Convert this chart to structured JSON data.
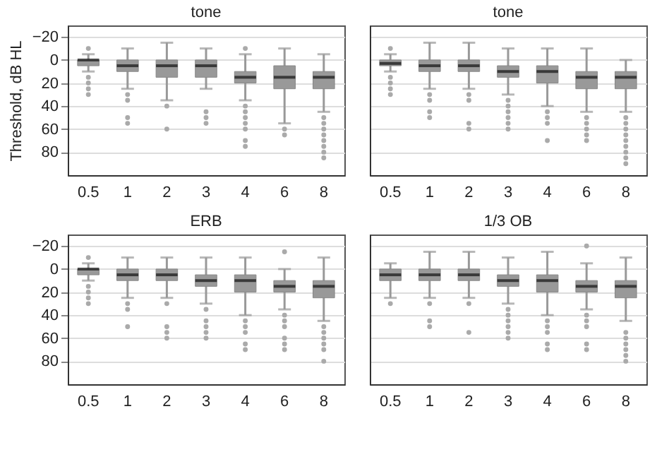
{
  "chart_data": [
    {
      "type": "box",
      "title": "tone",
      "ylabel": "Threshold, dB HL",
      "categories": [
        "0.5",
        "1",
        "2",
        "3",
        "4",
        "6",
        "8"
      ],
      "ylim": [
        100,
        -30
      ],
      "yticks": [
        -20,
        0,
        20,
        40,
        60,
        80
      ],
      "grid": "y",
      "boxes": [
        {
          "low": -5,
          "q1": 0,
          "median": 0,
          "q3": 5,
          "high": 10,
          "outliers": [
            -10,
            15,
            20,
            25,
            30
          ]
        },
        {
          "low": -10,
          "q1": 0,
          "median": 5,
          "q3": 10,
          "high": 25,
          "outliers": [
            30,
            35,
            50,
            55
          ]
        },
        {
          "low": -15,
          "q1": 0,
          "median": 5,
          "q3": 15,
          "high": 35,
          "outliers": [
            40,
            60
          ]
        },
        {
          "low": -10,
          "q1": 0,
          "median": 5,
          "q3": 15,
          "high": 25,
          "outliers": [
            45,
            50,
            55
          ]
        },
        {
          "low": -5,
          "q1": 10,
          "median": 15,
          "q3": 20,
          "high": 35,
          "outliers": [
            -10,
            40,
            45,
            50,
            55,
            60,
            70,
            75
          ]
        },
        {
          "low": -10,
          "q1": 5,
          "median": 15,
          "q3": 25,
          "high": 55,
          "outliers": [
            60,
            65
          ]
        },
        {
          "low": -5,
          "q1": 10,
          "median": 15,
          "q3": 25,
          "high": 45,
          "outliers": [
            50,
            55,
            60,
            65,
            70,
            75,
            80,
            85
          ]
        }
      ]
    },
    {
      "type": "box",
      "title": "tone",
      "categories": [
        "0.5",
        "1",
        "2",
        "3",
        "4",
        "6",
        "8"
      ],
      "ylim": [
        100,
        -30
      ],
      "yticks": [
        -20,
        0,
        20,
        40,
        60,
        80
      ],
      "grid": "y",
      "tick_labels": "x",
      "boxes": [
        {
          "low": -5,
          "q1": 0,
          "median": 3,
          "q3": 5,
          "high": 10,
          "outliers": [
            -10,
            15,
            20,
            25,
            30
          ]
        },
        {
          "low": -15,
          "q1": 0,
          "median": 5,
          "q3": 10,
          "high": 25,
          "outliers": [
            30,
            35,
            45,
            50
          ]
        },
        {
          "low": -15,
          "q1": 0,
          "median": 5,
          "q3": 10,
          "high": 25,
          "outliers": [
            30,
            35,
            55,
            60
          ]
        },
        {
          "low": -10,
          "q1": 5,
          "median": 10,
          "q3": 15,
          "high": 30,
          "outliers": [
            35,
            40,
            45,
            50,
            55,
            60
          ]
        },
        {
          "low": -10,
          "q1": 5,
          "median": 10,
          "q3": 20,
          "high": 40,
          "outliers": [
            45,
            50,
            55,
            70
          ]
        },
        {
          "low": -10,
          "q1": 10,
          "median": 15,
          "q3": 25,
          "high": 45,
          "outliers": [
            50,
            55,
            60,
            65,
            70
          ]
        },
        {
          "low": 0,
          "q1": 10,
          "median": 15,
          "q3": 25,
          "high": 45,
          "outliers": [
            50,
            55,
            60,
            65,
            70,
            75,
            80,
            85,
            90
          ]
        }
      ]
    },
    {
      "type": "box",
      "title": "ERB",
      "categories": [
        "0.5",
        "1",
        "2",
        "3",
        "4",
        "6",
        "8"
      ],
      "ylim": [
        100,
        -30
      ],
      "yticks": [
        -20,
        0,
        20,
        40,
        60,
        80
      ],
      "grid": "y",
      "boxes": [
        {
          "low": -5,
          "q1": 0,
          "median": 0,
          "q3": 5,
          "high": 10,
          "outliers": [
            -10,
            15,
            20,
            25,
            30
          ]
        },
        {
          "low": -10,
          "q1": 0,
          "median": 5,
          "q3": 10,
          "high": 25,
          "outliers": [
            30,
            35,
            50
          ]
        },
        {
          "low": -10,
          "q1": 0,
          "median": 5,
          "q3": 10,
          "high": 25,
          "outliers": [
            30,
            50,
            55,
            60
          ]
        },
        {
          "low": -10,
          "q1": 5,
          "median": 10,
          "q3": 15,
          "high": 30,
          "outliers": [
            35,
            45,
            50,
            55,
            60
          ]
        },
        {
          "low": -10,
          "q1": 5,
          "median": 10,
          "q3": 20,
          "high": 40,
          "outliers": [
            45,
            50,
            55,
            65,
            70
          ]
        },
        {
          "low": 0,
          "q1": 10,
          "median": 15,
          "q3": 20,
          "high": 35,
          "outliers": [
            -15,
            40,
            45,
            50,
            60,
            65,
            70
          ]
        },
        {
          "low": -10,
          "q1": 10,
          "median": 15,
          "q3": 25,
          "high": 45,
          "outliers": [
            50,
            55,
            60,
            65,
            70,
            80
          ]
        }
      ]
    },
    {
      "type": "box",
      "title": "1/3 OB",
      "categories": [
        "0.5",
        "1",
        "2",
        "3",
        "4",
        "6",
        "8"
      ],
      "ylim": [
        100,
        -30
      ],
      "yticks": [
        -20,
        0,
        20,
        40,
        60,
        80
      ],
      "grid": "y",
      "tick_labels": "x",
      "boxes": [
        {
          "low": -5,
          "q1": 0,
          "median": 5,
          "q3": 10,
          "high": 25,
          "outliers": [
            30
          ]
        },
        {
          "low": -15,
          "q1": 0,
          "median": 5,
          "q3": 10,
          "high": 25,
          "outliers": [
            30,
            45,
            50
          ]
        },
        {
          "low": -15,
          "q1": 0,
          "median": 5,
          "q3": 10,
          "high": 25,
          "outliers": [
            30,
            55
          ]
        },
        {
          "low": -10,
          "q1": 5,
          "median": 10,
          "q3": 15,
          "high": 30,
          "outliers": [
            35,
            40,
            45,
            50,
            55,
            60
          ]
        },
        {
          "low": -15,
          "q1": 5,
          "median": 10,
          "q3": 20,
          "high": 40,
          "outliers": [
            45,
            50,
            55,
            65,
            70
          ]
        },
        {
          "low": -5,
          "q1": 10,
          "median": 15,
          "q3": 20,
          "high": 35,
          "outliers": [
            -20,
            40,
            45,
            50,
            65,
            70
          ]
        },
        {
          "low": -10,
          "q1": 10,
          "median": 15,
          "q3": 25,
          "high": 45,
          "outliers": [
            55,
            60,
            65,
            70,
            75,
            80
          ]
        }
      ]
    }
  ]
}
